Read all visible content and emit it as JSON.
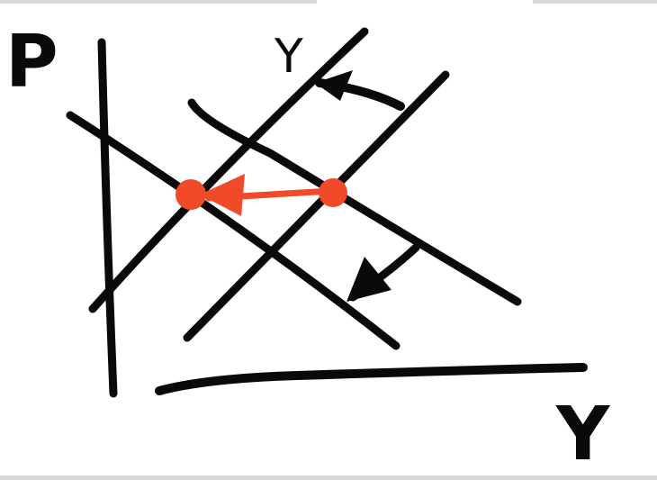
{
  "diagram": {
    "labels": {
      "vertical_axis": "P",
      "horizontal_axis": "Y",
      "curve_label": "Y"
    },
    "colors": {
      "ink": "#0a0a0a",
      "highlight": "#f04a2a",
      "background": "#ffffff",
      "frame_bar": "#d8d8d8"
    }
  }
}
